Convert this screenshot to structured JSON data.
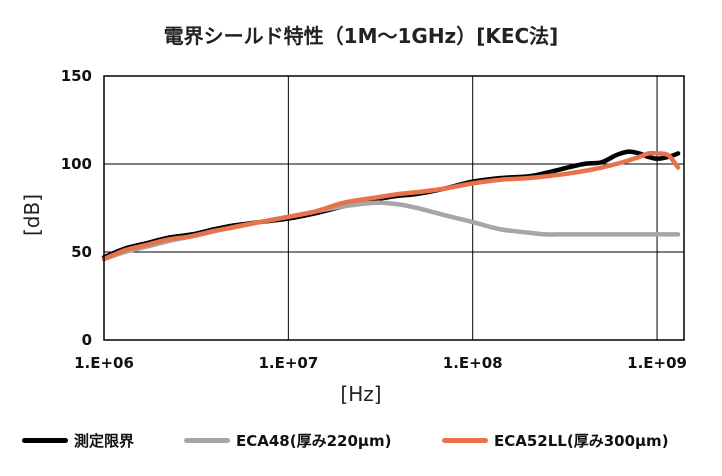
{
  "chart_data": {
    "type": "line",
    "title": "電界シールド特性（1M〜1GHz）[KEC法]",
    "xlabel": "[Hz]",
    "ylabel": "[dB]",
    "xscale": "log",
    "xlim": [
      1000000,
      1400000000
    ],
    "ylim": [
      0,
      150
    ],
    "xticks": [
      1000000,
      10000000,
      100000000,
      1000000000
    ],
    "xtick_labels": [
      "1.E+06",
      "1.E+07",
      "1.E+08",
      "1.E+09"
    ],
    "yticks": [
      0,
      50,
      100,
      150
    ],
    "ytick_labels": [
      "0",
      "50",
      "100",
      "150"
    ],
    "grid": true,
    "legend_position": "bottom",
    "series": [
      {
        "name": "測定限界",
        "color": "#000000",
        "x": [
          1000000,
          1300000,
          1700000,
          2200000,
          3000000,
          4000000,
          5000000,
          7000000,
          10000000,
          14000000,
          20000000,
          30000000,
          40000000,
          50000000,
          70000000,
          100000000,
          140000000,
          200000000,
          250000000,
          300000000,
          400000000,
          500000000,
          600000000,
          700000000,
          800000000,
          900000000,
          1000000000,
          1150000000,
          1300000000
        ],
        "values": [
          47,
          52,
          55,
          58,
          60,
          63,
          65,
          67,
          69,
          72,
          76,
          80,
          82,
          83,
          86,
          90,
          92,
          93,
          95,
          97,
          100,
          101,
          105,
          107,
          106,
          104,
          103,
          104,
          106
        ]
      },
      {
        "name": "ECA48(厚み220μm)",
        "color": "#a6a6a6",
        "x": [
          1000000,
          1300000,
          1700000,
          2200000,
          3000000,
          4000000,
          5000000,
          7000000,
          10000000,
          14000000,
          20000000,
          30000000,
          40000000,
          50000000,
          70000000,
          100000000,
          140000000,
          200000000,
          250000000,
          300000000,
          400000000,
          500000000,
          700000000,
          1000000000,
          1300000000
        ],
        "values": [
          46,
          50,
          53,
          56,
          59,
          62,
          64,
          67,
          70,
          73,
          76,
          78,
          77,
          75,
          71,
          67,
          63,
          61,
          60,
          60,
          60,
          60,
          60,
          60,
          60
        ]
      },
      {
        "name": "ECA52LL(厚み300μm)",
        "color": "#e8734a",
        "x": [
          1000000,
          1300000,
          1700000,
          2200000,
          3000000,
          4000000,
          5000000,
          7000000,
          10000000,
          14000000,
          20000000,
          30000000,
          40000000,
          50000000,
          70000000,
          100000000,
          140000000,
          200000000,
          250000000,
          300000000,
          400000000,
          500000000,
          600000000,
          700000000,
          800000000,
          900000000,
          1000000000,
          1150000000,
          1300000000
        ],
        "values": [
          46,
          51,
          54,
          57,
          59,
          62,
          64,
          67,
          70,
          73,
          78,
          81,
          83,
          84,
          86,
          89,
          91,
          92,
          93,
          94,
          96,
          98,
          100,
          102,
          104,
          106,
          106,
          105,
          98
        ]
      }
    ]
  }
}
